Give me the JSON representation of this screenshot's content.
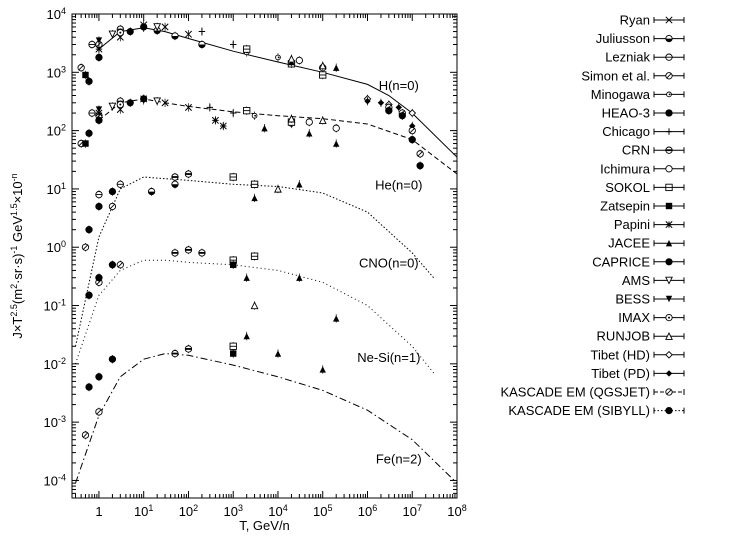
{
  "chart_data": {
    "type": "scatter",
    "title": "",
    "xlabel": "T, GeV/n",
    "ylabel": "J×T^2.5(m^2·sr·s)^-1 GeV^1.5×10^-n",
    "xscale": "log",
    "yscale": "log",
    "xlim": [
      0.25,
      100000000
    ],
    "ylim": [
      5e-05,
      10000
    ],
    "x_ticks": [
      {
        "value": 1,
        "base": "1",
        "exp": ""
      },
      {
        "value": 10,
        "base": "10",
        "exp": "1"
      },
      {
        "value": 100,
        "base": "10",
        "exp": "2"
      },
      {
        "value": 1000,
        "base": "10",
        "exp": "3"
      },
      {
        "value": 10000,
        "base": "10",
        "exp": "4"
      },
      {
        "value": 100000,
        "base": "10",
        "exp": "5"
      },
      {
        "value": 1000000,
        "base": "10",
        "exp": "6"
      },
      {
        "value": 10000000,
        "base": "10",
        "exp": "7"
      },
      {
        "value": 100000000,
        "base": "10",
        "exp": "8"
      }
    ],
    "y_ticks": [
      {
        "value": 0.0001,
        "base": "10",
        "exp": "-4"
      },
      {
        "value": 0.001,
        "base": "10",
        "exp": "-3"
      },
      {
        "value": 0.01,
        "base": "10",
        "exp": "-2"
      },
      {
        "value": 0.1,
        "base": "10",
        "exp": "-1"
      },
      {
        "value": 1,
        "base": "10",
        "exp": "0"
      },
      {
        "value": 10,
        "base": "10",
        "exp": "1"
      },
      {
        "value": 100,
        "base": "10",
        "exp": "2"
      },
      {
        "value": 1000,
        "base": "10",
        "exp": "3"
      },
      {
        "value": 10000,
        "base": "10",
        "exp": "4"
      }
    ],
    "grid": false,
    "legend_position": "right, outside plot",
    "annotations": [
      {
        "text": "H(n=0)",
        "x": 5000000,
        "y": 600
      },
      {
        "text": "He(n=0)",
        "x": 5000000,
        "y": 12
      },
      {
        "text": "CNO(n=0)",
        "x": 3000000,
        "y": 0.55
      },
      {
        "text": "Ne-Si(n=1)",
        "x": 3000000,
        "y": 0.013
      },
      {
        "text": "Fe(n=2)",
        "x": 5000000,
        "y": 0.00024
      }
    ],
    "fits": [
      {
        "group": "H",
        "style": "solid",
        "points": [
          [
            1,
            2500
          ],
          [
            3,
            5000
          ],
          [
            10,
            5800
          ],
          [
            30,
            5000
          ],
          [
            100,
            3800
          ],
          [
            1000,
            2300
          ],
          [
            10000,
            1500
          ],
          [
            100000,
            1000
          ],
          [
            1000000,
            620
          ],
          [
            3000000,
            400
          ],
          [
            10000000,
            200
          ],
          [
            100000000,
            35
          ]
        ]
      },
      {
        "group": "He",
        "style": "dashed",
        "points": [
          [
            1,
            150
          ],
          [
            3,
            300
          ],
          [
            10,
            350
          ],
          [
            30,
            300
          ],
          [
            100,
            260
          ],
          [
            1000,
            210
          ],
          [
            10000,
            180
          ],
          [
            100000,
            160
          ],
          [
            1000000,
            130
          ],
          [
            10000000,
            70
          ],
          [
            100000000,
            18
          ]
        ]
      },
      {
        "group": "CNO",
        "style": "dense-dotted",
        "points": [
          [
            0.3,
            0.02
          ],
          [
            1,
            1.5
          ],
          [
            3,
            10
          ],
          [
            10,
            16
          ],
          [
            30,
            15
          ],
          [
            100,
            14
          ],
          [
            1000,
            12
          ],
          [
            10000,
            11
          ],
          [
            100000,
            8.5
          ],
          [
            1000000,
            4
          ],
          [
            10000000,
            0.8
          ],
          [
            30000000,
            0.3
          ]
        ]
      },
      {
        "group": "Ne-Si",
        "style": "sparse-dotted",
        "points": [
          [
            0.3,
            0.01
          ],
          [
            1,
            0.15
          ],
          [
            3,
            0.4
          ],
          [
            10,
            0.6
          ],
          [
            30,
            0.6
          ],
          [
            100,
            0.55
          ],
          [
            1000,
            0.5
          ],
          [
            10000,
            0.4
          ],
          [
            100000,
            0.25
          ],
          [
            1000000,
            0.1
          ],
          [
            10000000,
            0.02
          ],
          [
            30000000,
            0.007
          ]
        ]
      },
      {
        "group": "Fe",
        "style": "dash-dot",
        "points": [
          [
            0.3,
            9e-05
          ],
          [
            1,
            0.0013
          ],
          [
            3,
            0.006
          ],
          [
            10,
            0.012
          ],
          [
            30,
            0.015
          ],
          [
            100,
            0.014
          ],
          [
            1000,
            0.0095
          ],
          [
            10000,
            0.006
          ],
          [
            100000,
            0.0035
          ],
          [
            1000000,
            0.0016
          ],
          [
            10000000,
            0.0005
          ],
          [
            100000000,
            9e-05
          ]
        ]
      }
    ],
    "series": [
      {
        "name": "Ryan",
        "marker": "x",
        "points": [
          [
            3,
            4000
          ],
          [
            10,
            6500
          ],
          [
            30,
            6000
          ],
          [
            100,
            4500
          ],
          [
            3,
            230
          ],
          [
            10,
            350
          ],
          [
            30,
            300
          ],
          [
            100,
            250
          ]
        ]
      },
      {
        "name": "Juliusson",
        "marker": "circle-half",
        "points": [
          [
            20,
            5200
          ],
          [
            50,
            4200
          ],
          [
            200,
            3000
          ],
          [
            15,
            9
          ],
          [
            50,
            12
          ]
        ]
      },
      {
        "name": "Lezniak",
        "marker": "circle-line",
        "points": [
          [
            0.7,
            3000
          ],
          [
            3,
            5500
          ],
          [
            0.7,
            200
          ],
          [
            3,
            320
          ],
          [
            1,
            8
          ],
          [
            3,
            12
          ]
        ]
      },
      {
        "name": "Simon et al.",
        "marker": "circle-slash",
        "points": [
          [
            0.4,
            1200
          ],
          [
            1,
            3000
          ],
          [
            0.4,
            60
          ],
          [
            1,
            180
          ],
          [
            0.5,
            1
          ],
          [
            2,
            5
          ],
          [
            1,
            0.25
          ],
          [
            3,
            0.5
          ],
          [
            0.5,
            0.0006
          ],
          [
            1,
            0.0015
          ]
        ]
      },
      {
        "name": "Minogawa",
        "marker": "circle-small",
        "points": [
          [
            2000,
            2200
          ],
          [
            10000,
            1800
          ],
          [
            3000,
            180
          ],
          [
            20000,
            130
          ]
        ]
      },
      {
        "name": "HEAO-3",
        "marker": "filled-circle",
        "points": [
          [
            0.6,
            700
          ],
          [
            1,
            1800
          ],
          [
            0.6,
            90
          ],
          [
            1,
            150
          ],
          [
            0.6,
            2
          ],
          [
            1,
            5
          ],
          [
            2,
            9
          ],
          [
            0.6,
            0.15
          ],
          [
            1,
            0.3
          ],
          [
            2,
            0.5
          ],
          [
            0.6,
            0.004
          ],
          [
            1,
            0.006
          ],
          [
            2,
            0.012
          ]
        ]
      },
      {
        "name": "Chicago",
        "marker": "plus",
        "points": [
          [
            200,
            5000
          ],
          [
            1000,
            3000
          ],
          [
            300,
            250
          ],
          [
            1000,
            200
          ]
        ]
      },
      {
        "name": "CRN",
        "marker": "circle-bar",
        "points": [
          [
            50,
            16
          ],
          [
            100,
            18
          ],
          [
            50,
            0.8
          ],
          [
            100,
            0.9
          ],
          [
            200,
            0.8
          ],
          [
            50,
            0.015
          ],
          [
            100,
            0.018
          ]
        ]
      },
      {
        "name": "Ichimura",
        "marker": "circle-empty",
        "points": [
          [
            30000,
            1600
          ],
          [
            100000,
            1200
          ],
          [
            50000,
            140
          ],
          [
            200000,
            110
          ]
        ]
      },
      {
        "name": "SOKOL",
        "marker": "square-line",
        "points": [
          [
            2000,
            2500
          ],
          [
            20000,
            1400
          ],
          [
            100000,
            900
          ],
          [
            2000,
            220
          ],
          [
            20000,
            140
          ],
          [
            1000,
            16
          ],
          [
            3000,
            12
          ],
          [
            1000,
            0.6
          ],
          [
            3000,
            0.7
          ],
          [
            1000,
            0.02
          ]
        ]
      },
      {
        "name": "Zatsepin",
        "marker": "filled-square",
        "points": [
          [
            0.5,
            900
          ],
          [
            0.5,
            60
          ],
          [
            1000,
            0.5
          ],
          [
            1000,
            0.015
          ]
        ]
      },
      {
        "name": "Papini",
        "marker": "asterisk",
        "points": [
          [
            1,
            2500
          ],
          [
            1,
            200
          ],
          [
            400,
            150
          ],
          [
            600,
            120
          ]
        ]
      },
      {
        "name": "JACEE",
        "marker": "filled-triangle",
        "points": [
          [
            20000,
            1500
          ],
          [
            200000,
            1200
          ],
          [
            5000,
            110
          ],
          [
            50000,
            90
          ],
          [
            200000,
            60
          ],
          [
            3000,
            7
          ],
          [
            30000,
            12
          ],
          [
            2000,
            0.3
          ],
          [
            30000,
            0.3
          ],
          [
            200000,
            0.06
          ],
          [
            2000,
            0.03
          ],
          [
            10000,
            0.015
          ],
          [
            100000,
            0.008
          ]
        ]
      },
      {
        "name": "CAPRICE",
        "marker": "filled-circle-large",
        "points": [
          [
            5,
            5000
          ],
          [
            10,
            6000
          ],
          [
            5,
            300
          ],
          [
            10,
            350
          ]
        ]
      },
      {
        "name": "AMS",
        "marker": "triangle-down",
        "points": [
          [
            2,
            4500
          ],
          [
            20,
            6000
          ],
          [
            2,
            260
          ],
          [
            20,
            320
          ]
        ]
      },
      {
        "name": "BESS",
        "marker": "filled-triangle-down",
        "points": [
          [
            1,
            3500
          ],
          [
            10,
            5800
          ],
          [
            1,
            230
          ],
          [
            10,
            330
          ]
        ]
      },
      {
        "name": "IMAX",
        "marker": "circle-dot",
        "points": [
          [
            3,
            4800
          ],
          [
            3,
            280
          ]
        ]
      },
      {
        "name": "RUNJOB",
        "marker": "triangle-empty",
        "points": [
          [
            20000,
            1700
          ],
          [
            100000,
            1300
          ],
          [
            500000,
            12000
          ],
          [
            20000,
            160
          ],
          [
            100000,
            150
          ],
          [
            10000,
            10
          ],
          [
            3000,
            0.1
          ]
        ]
      },
      {
        "name": "Tibet (HD)",
        "marker": "diamond-empty",
        "points": [
          [
            1000000,
            350
          ],
          [
            3000000,
            280
          ],
          [
            10000000,
            200
          ]
        ]
      },
      {
        "name": "Tibet (PD)",
        "marker": "filled-diamond",
        "points": [
          [
            1000000,
            320
          ],
          [
            2000000,
            300
          ],
          [
            5000000,
            250
          ],
          [
            10000000,
            120
          ]
        ]
      },
      {
        "name": "KASCADE EM (QGSJET)",
        "marker": "circle-slash",
        "line": "dashed",
        "points": [
          [
            3000000,
            250
          ],
          [
            6000000,
            200
          ],
          [
            10000000,
            100
          ],
          [
            15000000,
            40
          ]
        ]
      },
      {
        "name": "KASCADE EM (SIBYLL)",
        "marker": "filled-circle",
        "line": "dotted",
        "points": [
          [
            3000000,
            220
          ],
          [
            6000000,
            180
          ],
          [
            10000000,
            70
          ],
          [
            15000000,
            25
          ]
        ]
      }
    ]
  }
}
